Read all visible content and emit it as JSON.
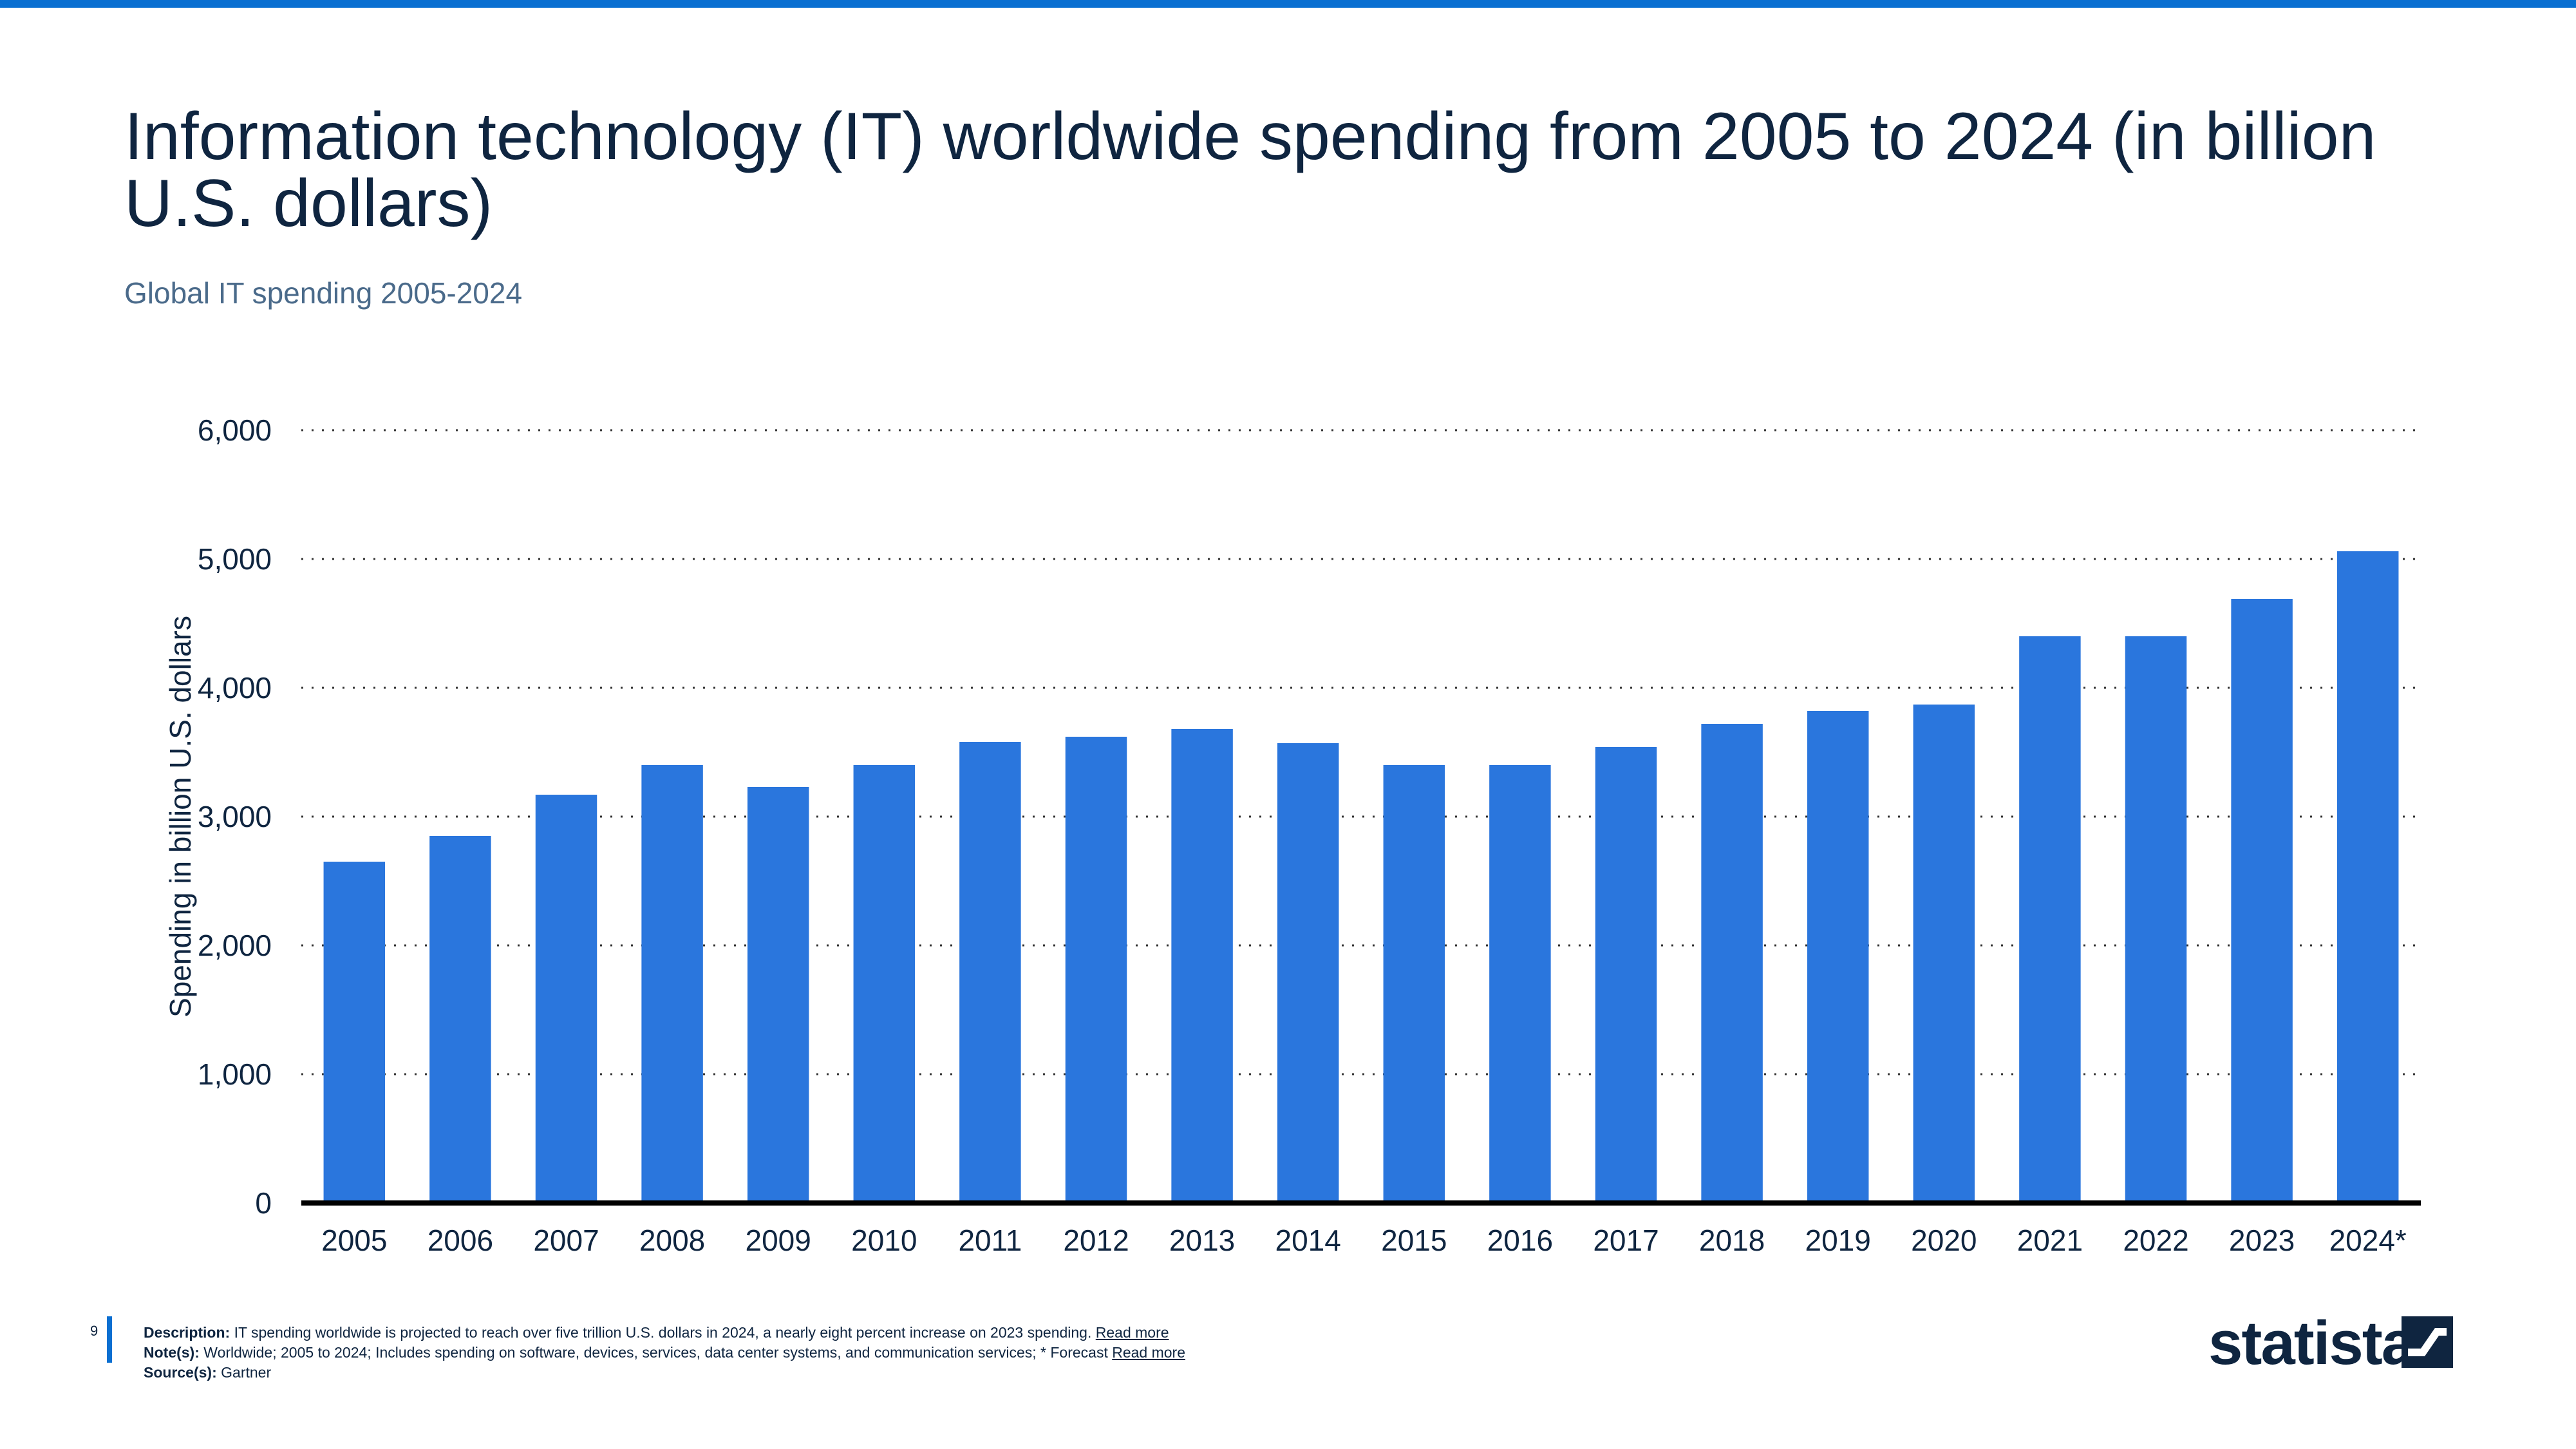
{
  "header": {
    "title": "Information technology (IT) worldwide spending from 2005 to 2024 (in billion U.S. dollars)",
    "subtitle": "Global IT spending 2005-2024"
  },
  "colors": {
    "bar": "#2a76dd",
    "accent": "#0a6fd1",
    "text": "#0f2540",
    "grid": "#333333"
  },
  "chart_data": {
    "type": "bar",
    "categories": [
      "2005",
      "2006",
      "2007",
      "2008",
      "2009",
      "2010",
      "2011",
      "2012",
      "2013",
      "2014",
      "2015",
      "2016",
      "2017",
      "2018",
      "2019",
      "2020",
      "2021",
      "2022",
      "2023",
      "2024*"
    ],
    "values": [
      2650,
      2850,
      3170,
      3400,
      3230,
      3400,
      3580,
      3620,
      3680,
      3570,
      3400,
      3400,
      3540,
      3720,
      3820,
      3870,
      4400,
      4400,
      4690,
      5060
    ],
    "title": "",
    "xlabel": "",
    "ylabel": "Spending in billion U.S. dollars",
    "ylim": [
      0,
      6000
    ],
    "yticks": [
      0,
      1000,
      2000,
      3000,
      4000,
      5000,
      6000
    ],
    "ytick_labels": [
      "0",
      "1,000",
      "2,000",
      "3,000",
      "4,000",
      "5,000",
      "6,000"
    ],
    "grid": true,
    "grid_style": "dotted"
  },
  "footer": {
    "page_number": "9",
    "description_label": "Description:",
    "description_text": " IT spending worldwide is projected to reach over five trillion U.S. dollars in 2024, a nearly eight percent increase on 2023 spending. ",
    "description_link": "Read more",
    "notes_label": "Note(s):",
    "notes_text": " Worldwide; 2005 to 2024; Includes spending on software, devices, services, data center systems, and communication services; * Forecast ",
    "notes_link": "Read more",
    "source_label": "Source(s):",
    "source_text": " Gartner",
    "logo_text": "statista"
  }
}
